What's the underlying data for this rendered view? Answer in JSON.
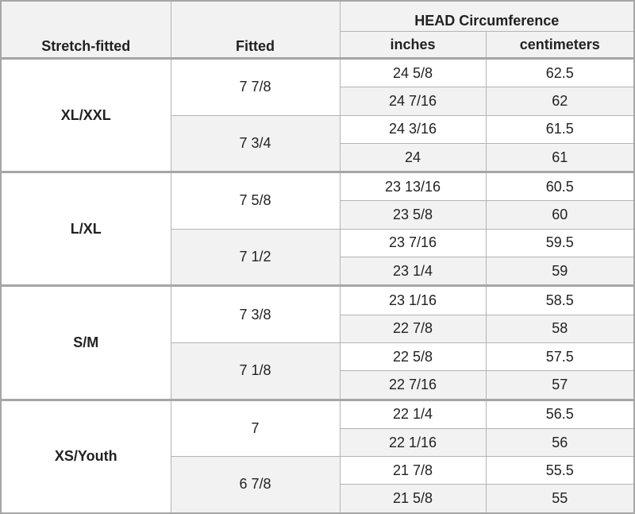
{
  "table": {
    "header": {
      "stretch_fitted": "Stretch-fitted",
      "fitted": "Fitted",
      "head_circumference": "HEAD Circumference",
      "inches": "inches",
      "centimeters": "centimeters"
    },
    "groups": [
      {
        "size": "XL/XXL",
        "fitted": [
          {
            "size": "7 7/8",
            "rows": [
              [
                "24 5/8",
                "62.5"
              ],
              [
                "24 7/16",
                "62"
              ]
            ]
          },
          {
            "size": "7 3/4",
            "rows": [
              [
                "24 3/16",
                "61.5"
              ],
              [
                "24",
                "61"
              ]
            ]
          }
        ]
      },
      {
        "size": "L/XL",
        "fitted": [
          {
            "size": "7 5/8",
            "rows": [
              [
                "23 13/16",
                "60.5"
              ],
              [
                "23 5/8",
                "60"
              ]
            ]
          },
          {
            "size": "7 1/2",
            "rows": [
              [
                "23 7/16",
                "59.5"
              ],
              [
                "23 1/4",
                "59"
              ]
            ]
          }
        ]
      },
      {
        "size": "S/M",
        "fitted": [
          {
            "size": "7 3/8",
            "rows": [
              [
                "23 1/16",
                "58.5"
              ],
              [
                "22 7/8",
                "58"
              ]
            ]
          },
          {
            "size": "7 1/8",
            "rows": [
              [
                "22 5/8",
                "57.5"
              ],
              [
                "22 7/16",
                "57"
              ]
            ]
          }
        ]
      },
      {
        "size": "XS/Youth",
        "fitted": [
          {
            "size": "7",
            "rows": [
              [
                "22 1/4",
                "56.5"
              ],
              [
                "22 1/16",
                "56"
              ]
            ]
          },
          {
            "size": "6 7/8",
            "rows": [
              [
                "21 7/8",
                "55.5"
              ],
              [
                "21 5/8",
                "55"
              ]
            ]
          }
        ]
      }
    ]
  }
}
